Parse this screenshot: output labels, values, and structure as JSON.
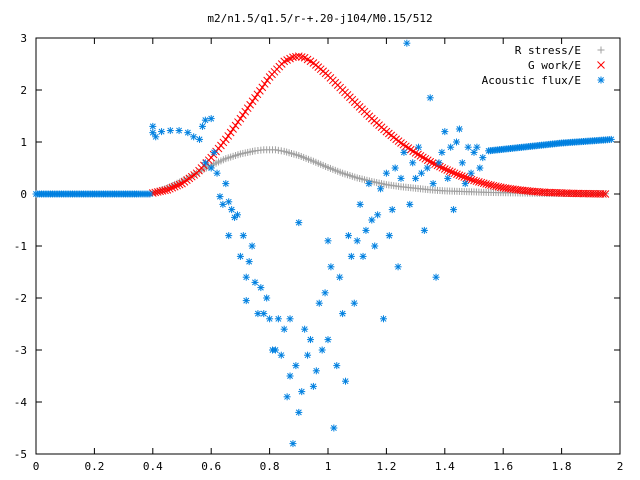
{
  "chart_data": {
    "type": "scatter",
    "title": "m2/n1.5/q1.5/r-+.20-j104/M0.15/512",
    "xlabel": "",
    "ylabel": "",
    "xlim": [
      0,
      2
    ],
    "ylim": [
      -5,
      3
    ],
    "xticks": [
      "0",
      "0.2",
      "0.4",
      "0.6",
      "0.8",
      "1",
      "1.2",
      "1.4",
      "1.6",
      "1.8",
      "2"
    ],
    "yticks": [
      "3",
      "2",
      "1",
      "0",
      "-1",
      "-2",
      "-3",
      "-4",
      "-5"
    ],
    "grid": false,
    "legend_position": "top-right",
    "series": [
      {
        "name": "R stress/E",
        "marker": "plus",
        "color": "#a0a0a0",
        "points": [
          [
            0.4,
            0.02
          ],
          [
            0.45,
            0.12
          ],
          [
            0.5,
            0.25
          ],
          [
            0.55,
            0.4
          ],
          [
            0.6,
            0.55
          ],
          [
            0.65,
            0.68
          ],
          [
            0.7,
            0.77
          ],
          [
            0.75,
            0.83
          ],
          [
            0.78,
            0.85
          ],
          [
            0.82,
            0.85
          ],
          [
            0.85,
            0.82
          ],
          [
            0.9,
            0.74
          ],
          [
            0.95,
            0.63
          ],
          [
            1.0,
            0.51
          ],
          [
            1.05,
            0.4
          ],
          [
            1.1,
            0.31
          ],
          [
            1.15,
            0.24
          ],
          [
            1.2,
            0.18
          ],
          [
            1.25,
            0.14
          ],
          [
            1.3,
            0.11
          ],
          [
            1.35,
            0.08
          ],
          [
            1.4,
            0.06
          ],
          [
            1.45,
            0.05
          ],
          [
            1.5,
            0.04
          ],
          [
            1.55,
            0.03
          ],
          [
            1.6,
            0.025
          ],
          [
            1.65,
            0.02
          ],
          [
            1.7,
            0.015
          ],
          [
            1.75,
            0.01
          ],
          [
            1.8,
            0.01
          ],
          [
            1.85,
            0.01
          ],
          [
            1.9,
            0.005
          ],
          [
            1.95,
            0.005
          ]
        ]
      },
      {
        "name": "G work/E",
        "marker": "x",
        "color": "#ff0000",
        "points": [
          [
            0.4,
            0.02
          ],
          [
            0.45,
            0.08
          ],
          [
            0.5,
            0.2
          ],
          [
            0.55,
            0.4
          ],
          [
            0.6,
            0.7
          ],
          [
            0.65,
            1.05
          ],
          [
            0.7,
            1.45
          ],
          [
            0.75,
            1.85
          ],
          [
            0.8,
            2.25
          ],
          [
            0.85,
            2.55
          ],
          [
            0.88,
            2.63
          ],
          [
            0.9,
            2.65
          ],
          [
            0.92,
            2.62
          ],
          [
            0.95,
            2.52
          ],
          [
            1.0,
            2.28
          ],
          [
            1.05,
            2.0
          ],
          [
            1.1,
            1.72
          ],
          [
            1.15,
            1.45
          ],
          [
            1.2,
            1.2
          ],
          [
            1.25,
            0.98
          ],
          [
            1.3,
            0.79
          ],
          [
            1.35,
            0.62
          ],
          [
            1.4,
            0.48
          ],
          [
            1.45,
            0.36
          ],
          [
            1.5,
            0.26
          ],
          [
            1.55,
            0.18
          ],
          [
            1.6,
            0.12
          ],
          [
            1.65,
            0.08
          ],
          [
            1.7,
            0.05
          ],
          [
            1.75,
            0.03
          ],
          [
            1.8,
            0.02
          ],
          [
            1.85,
            0.01
          ],
          [
            1.9,
            0.005
          ],
          [
            1.95,
            0.0
          ]
        ]
      },
      {
        "name": "Acoustic flux/E",
        "marker": "star",
        "color": "#0080e0",
        "points": [
          [
            0.0,
            0.0
          ],
          [
            0.05,
            0.0
          ],
          [
            0.1,
            0.0
          ],
          [
            0.15,
            0.0
          ],
          [
            0.2,
            0.0
          ],
          [
            0.25,
            0.0
          ],
          [
            0.3,
            0.0
          ],
          [
            0.35,
            0.0
          ],
          [
            0.39,
            0.0
          ],
          [
            0.4,
            1.3
          ],
          [
            0.4,
            1.18
          ],
          [
            0.41,
            1.1
          ],
          [
            0.43,
            1.2
          ],
          [
            0.46,
            1.22
          ],
          [
            0.49,
            1.22
          ],
          [
            0.52,
            1.18
          ],
          [
            0.54,
            1.1
          ],
          [
            0.56,
            1.05
          ],
          [
            0.57,
            1.3
          ],
          [
            0.58,
            1.42
          ],
          [
            0.6,
            1.45
          ],
          [
            0.61,
            0.8
          ],
          [
            0.58,
            0.6
          ],
          [
            0.6,
            0.5
          ],
          [
            0.62,
            0.4
          ],
          [
            0.63,
            -0.05
          ],
          [
            0.64,
            -0.2
          ],
          [
            0.65,
            0.2
          ],
          [
            0.66,
            -0.15
          ],
          [
            0.66,
            -0.8
          ],
          [
            0.67,
            -0.3
          ],
          [
            0.68,
            -0.45
          ],
          [
            0.69,
            -0.4
          ],
          [
            0.7,
            -1.2
          ],
          [
            0.71,
            -0.8
          ],
          [
            0.72,
            -1.6
          ],
          [
            0.72,
            -2.05
          ],
          [
            0.73,
            -1.3
          ],
          [
            0.74,
            -1.0
          ],
          [
            0.75,
            -1.7
          ],
          [
            0.76,
            -2.3
          ],
          [
            0.77,
            -1.8
          ],
          [
            0.78,
            -2.3
          ],
          [
            0.79,
            -2.0
          ],
          [
            0.8,
            -2.4
          ],
          [
            0.81,
            -3.0
          ],
          [
            0.82,
            -3.0
          ],
          [
            0.83,
            -2.4
          ],
          [
            0.84,
            -3.1
          ],
          [
            0.85,
            -2.6
          ],
          [
            0.86,
            -3.9
          ],
          [
            0.87,
            -2.4
          ],
          [
            0.87,
            -3.5
          ],
          [
            0.88,
            -4.8
          ],
          [
            0.89,
            -3.3
          ],
          [
            0.9,
            -0.55
          ],
          [
            0.9,
            -4.2
          ],
          [
            0.91,
            -3.8
          ],
          [
            0.92,
            -2.6
          ],
          [
            0.93,
            -3.1
          ],
          [
            0.94,
            -2.8
          ],
          [
            0.95,
            -3.7
          ],
          [
            0.96,
            -3.4
          ],
          [
            0.97,
            -2.1
          ],
          [
            0.98,
            -3.0
          ],
          [
            0.99,
            -1.9
          ],
          [
            1.0,
            -0.9
          ],
          [
            1.0,
            -2.8
          ],
          [
            1.01,
            -1.4
          ],
          [
            1.02,
            -4.5
          ],
          [
            1.03,
            -3.3
          ],
          [
            1.04,
            -1.6
          ],
          [
            1.05,
            -2.3
          ],
          [
            1.06,
            -3.6
          ],
          [
            1.07,
            -0.8
          ],
          [
            1.08,
            -1.2
          ],
          [
            1.09,
            -2.1
          ],
          [
            1.1,
            -0.9
          ],
          [
            1.11,
            -0.2
          ],
          [
            1.12,
            -1.2
          ],
          [
            1.13,
            -0.7
          ],
          [
            1.14,
            0.2
          ],
          [
            1.15,
            -0.5
          ],
          [
            1.16,
            -1.0
          ],
          [
            1.17,
            -0.4
          ],
          [
            1.18,
            0.1
          ],
          [
            1.19,
            -2.4
          ],
          [
            1.2,
            0.4
          ],
          [
            1.21,
            -0.8
          ],
          [
            1.22,
            -0.3
          ],
          [
            1.23,
            0.5
          ],
          [
            1.24,
            -1.4
          ],
          [
            1.25,
            0.3
          ],
          [
            1.26,
            0.8
          ],
          [
            1.27,
            2.9
          ],
          [
            1.28,
            -0.2
          ],
          [
            1.29,
            0.6
          ],
          [
            1.3,
            0.3
          ],
          [
            1.31,
            0.9
          ],
          [
            1.32,
            0.4
          ],
          [
            1.33,
            -0.7
          ],
          [
            1.34,
            0.5
          ],
          [
            1.35,
            1.85
          ],
          [
            1.36,
            0.2
          ],
          [
            1.37,
            -1.6
          ],
          [
            1.38,
            0.6
          ],
          [
            1.39,
            0.8
          ],
          [
            1.4,
            1.2
          ],
          [
            1.41,
            0.3
          ],
          [
            1.42,
            0.9
          ],
          [
            1.43,
            -0.3
          ],
          [
            1.44,
            1.0
          ],
          [
            1.45,
            1.25
          ],
          [
            1.46,
            0.6
          ],
          [
            1.47,
            0.2
          ],
          [
            1.48,
            0.9
          ],
          [
            1.49,
            0.4
          ],
          [
            1.5,
            0.8
          ],
          [
            1.51,
            0.9
          ],
          [
            1.52,
            0.5
          ],
          [
            1.53,
            0.7
          ],
          [
            1.55,
            0.83
          ],
          [
            1.6,
            0.86
          ],
          [
            1.65,
            0.89
          ],
          [
            1.7,
            0.92
          ],
          [
            1.75,
            0.95
          ],
          [
            1.8,
            0.98
          ],
          [
            1.85,
            1.0
          ],
          [
            1.9,
            1.02
          ],
          [
            1.95,
            1.04
          ],
          [
            1.97,
            1.05
          ]
        ]
      }
    ]
  }
}
